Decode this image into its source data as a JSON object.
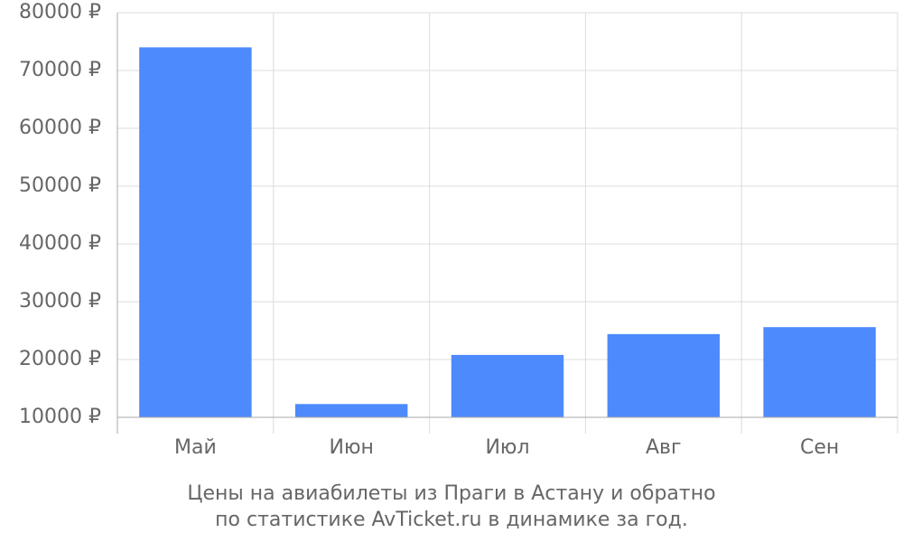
{
  "chart_data": {
    "type": "bar",
    "caption": [
      "Цены на авиабилеты из Праги в Астану и обратно",
      "по статистике AvTicket.ru в динамике за год."
    ],
    "categories": [
      "Май",
      "Июн",
      "Июл",
      "Авг",
      "Сен"
    ],
    "values": [
      74000,
      12300,
      20800,
      24400,
      25600
    ],
    "color": "#4d8afc",
    "ylim": [
      10000,
      80000
    ],
    "yticks": [
      {
        "value": 10000,
        "label": "10000 ₽"
      },
      {
        "value": 20000,
        "label": "20000 ₽"
      },
      {
        "value": 30000,
        "label": "30000 ₽"
      },
      {
        "value": 40000,
        "label": "40000 ₽"
      },
      {
        "value": 50000,
        "label": "50000 ₽"
      },
      {
        "value": 60000,
        "label": "60000 ₽"
      },
      {
        "value": 70000,
        "label": "70000 ₽"
      },
      {
        "value": 80000,
        "label": "80000 ₽"
      }
    ],
    "grid": true
  }
}
